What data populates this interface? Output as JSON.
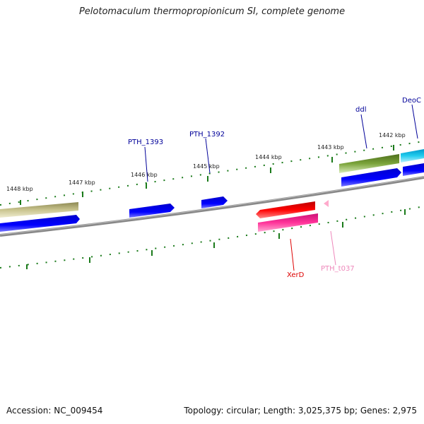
{
  "title": "Pelotomaculum thermopropionicum SI, complete genome",
  "footer": {
    "accession": "Accession: NC_009454",
    "summary": "Topology: circular; Length: 3,025,375 bp; Genes: 2,975"
  },
  "scale": {
    "ticks": [
      {
        "label": "1448 kbp"
      },
      {
        "label": "1447 kbp"
      },
      {
        "label": "1446 kbp"
      },
      {
        "label": "1445 kbp"
      },
      {
        "label": "1444 kbp"
      },
      {
        "label": "1443 kbp"
      },
      {
        "label": "1442 kbp"
      }
    ]
  },
  "genes": [
    {
      "name": "ddl",
      "color": "#000099"
    },
    {
      "name": "DeoC",
      "color": "#000099"
    },
    {
      "name": "PTH_1393",
      "color": "#000099"
    },
    {
      "name": "PTH_1392",
      "color": "#000099"
    },
    {
      "name": "XerD",
      "color": "#dd0000"
    },
    {
      "name": "PTH_t037",
      "color": "#ee88bb"
    }
  ],
  "colors": {
    "backbone": "#888888",
    "cds": "#0000ee",
    "olive": "#b5b07a",
    "green": "#6a9a2c",
    "cyan": "#22ccee",
    "rna": "#ee0000",
    "pink": "#ee2299",
    "trna": "#ffaacc",
    "tick": "#1a7a1a"
  }
}
